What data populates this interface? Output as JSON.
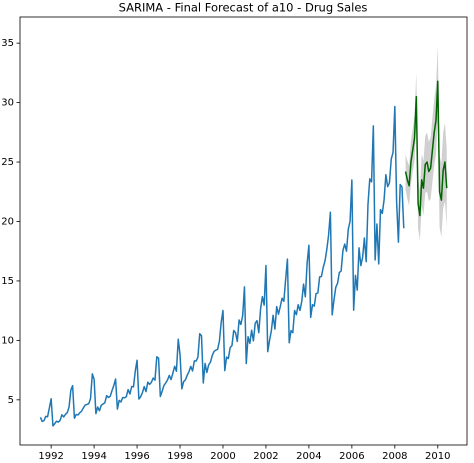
{
  "chart_data": {
    "type": "line",
    "title": "SARIMA - Final Forecast of a10 - Drug Sales",
    "xlim": [
      1990.55,
      2011.36
    ],
    "ylim": [
      1.2,
      37.2
    ],
    "xticks": [
      1992,
      1994,
      1996,
      1998,
      2000,
      2002,
      2004,
      2006,
      2008,
      2010
    ],
    "yticks": [
      5,
      10,
      15,
      20,
      25,
      30,
      35
    ],
    "series": [
      {
        "color": "#1f77b4",
        "x": [
          1991.5,
          1991.583,
          1991.667,
          1991.75,
          1991.833,
          1991.917,
          1992,
          1992.083,
          1992.167,
          1992.25,
          1992.333,
          1992.417,
          1992.5,
          1992.583,
          1992.667,
          1992.75,
          1992.833,
          1992.917,
          1993,
          1993.083,
          1993.167,
          1993.25,
          1993.333,
          1993.417,
          1993.5,
          1993.583,
          1993.667,
          1993.75,
          1993.833,
          1993.917,
          1994,
          1994.083,
          1994.167,
          1994.25,
          1994.333,
          1994.417,
          1994.5,
          1994.583,
          1994.667,
          1994.75,
          1994.833,
          1994.917,
          1995,
          1995.083,
          1995.167,
          1995.25,
          1995.333,
          1995.417,
          1995.5,
          1995.583,
          1995.667,
          1995.75,
          1995.833,
          1995.917,
          1996,
          1996.083,
          1996.167,
          1996.25,
          1996.333,
          1996.417,
          1996.5,
          1996.583,
          1996.667,
          1996.75,
          1996.833,
          1996.917,
          1997,
          1997.083,
          1997.167,
          1997.25,
          1997.333,
          1997.417,
          1997.5,
          1997.583,
          1997.667,
          1997.75,
          1997.833,
          1997.917,
          1998,
          1998.083,
          1998.167,
          1998.25,
          1998.333,
          1998.417,
          1998.5,
          1998.583,
          1998.667,
          1998.75,
          1998.833,
          1998.917,
          1999,
          1999.083,
          1999.167,
          1999.25,
          1999.333,
          1999.417,
          1999.5,
          1999.583,
          1999.667,
          1999.75,
          1999.833,
          1999.917,
          2000,
          2000.083,
          2000.167,
          2000.25,
          2000.333,
          2000.417,
          2000.5,
          2000.583,
          2000.667,
          2000.75,
          2000.833,
          2000.917,
          2001,
          2001.083,
          2001.167,
          2001.25,
          2001.333,
          2001.417,
          2001.5,
          2001.583,
          2001.667,
          2001.75,
          2001.833,
          2001.917,
          2002,
          2002.083,
          2002.167,
          2002.25,
          2002.333,
          2002.417,
          2002.5,
          2002.583,
          2002.667,
          2002.75,
          2002.833,
          2002.917,
          2003,
          2003.083,
          2003.167,
          2003.25,
          2003.333,
          2003.417,
          2003.5,
          2003.583,
          2003.667,
          2003.75,
          2003.833,
          2003.917,
          2004,
          2004.083,
          2004.167,
          2004.25,
          2004.333,
          2004.417,
          2004.5,
          2004.583,
          2004.667,
          2004.75,
          2004.833,
          2004.917,
          2005,
          2005.083,
          2005.167,
          2005.25,
          2005.333,
          2005.417,
          2005.5,
          2005.583,
          2005.667,
          2005.75,
          2005.833,
          2005.917,
          2006,
          2006.083,
          2006.167,
          2006.25,
          2006.333,
          2006.417,
          2006.5,
          2006.583,
          2006.667,
          2006.75,
          2006.833,
          2006.917,
          2007,
          2007.083,
          2007.167,
          2007.25,
          2007.333,
          2007.417,
          2007.5,
          2007.583,
          2007.667,
          2007.75,
          2007.833,
          2007.917,
          2008,
          2008.083,
          2008.167,
          2008.25,
          2008.333,
          2008.417
        ],
        "values": [
          3.53,
          3.18,
          3.25,
          3.61,
          3.57,
          4.31,
          5.09,
          2.81,
          2.99,
          3.2,
          3.13,
          3.27,
          3.74,
          3.56,
          3.78,
          3.92,
          4.39,
          5.81,
          6.19,
          3.45,
          3.77,
          3.73,
          3.91,
          4.05,
          4.32,
          4.56,
          4.61,
          4.67,
          5.09,
          7.18,
          6.73,
          3.84,
          4.39,
          4.08,
          4.54,
          4.65,
          4.75,
          5.35,
          5.2,
          5.3,
          5.77,
          6.2,
          6.75,
          4.22,
          4.95,
          4.82,
          5.19,
          5.17,
          5.26,
          5.86,
          5.49,
          6.12,
          6.09,
          7.42,
          8.33,
          5.07,
          5.26,
          5.6,
          6.11,
          5.69,
          6.49,
          6.3,
          6.47,
          6.83,
          6.65,
          8.61,
          8.52,
          5.28,
          5.71,
          6.21,
          6.41,
          6.67,
          7.05,
          6.7,
          7.25,
          7.82,
          7.4,
          10.1,
          8.8,
          5.92,
          6.53,
          6.68,
          7.06,
          7.38,
          7.81,
          7.43,
          8.28,
          8.26,
          8.6,
          10.56,
          10.39,
          6.42,
          8.06,
          7.3,
          7.94,
          8.17,
          8.72,
          9.07,
          9.18,
          9.25,
          9.93,
          11.53,
          12.51,
          7.46,
          8.59,
          8.47,
          9.39,
          9.56,
          10.83,
          10.64,
          9.91,
          11.71,
          11.34,
          12.08,
          14.5,
          8.05,
          10.31,
          9.75,
          10.85,
          9.96,
          11.44,
          11.66,
          10.65,
          12.65,
          13.67,
          12.97,
          16.3,
          9.05,
          10,
          10.79,
          12.11,
          10.95,
          12.84,
          12.2,
          12.85,
          13.54,
          13.29,
          15.13,
          16.83,
          9.8,
          10.82,
          10.65,
          12.51,
          12.16,
          13,
          12.52,
          13.27,
          14.73,
          13.67,
          16.5,
          18,
          11.94,
          13,
          12.88,
          13.94,
          13.99,
          15.34,
          15.37,
          16.14,
          16.69,
          17.64,
          18.87,
          20.78,
          12.15,
          13.4,
          14.46,
          14.8,
          15.71,
          15.83,
          17.55,
          18.1,
          17.5,
          19.35,
          20.03,
          23.49,
          12.54,
          15.47,
          14.23,
          17.78,
          16.29,
          16.98,
          18.61,
          16.62,
          21.43,
          23.58,
          23.33,
          28.04,
          16.76,
          19.79,
          16.43,
          21,
          20.68,
          21.83,
          23.93,
          22.93,
          23.26,
          25.25,
          25.81,
          29.67,
          21.65,
          18.26,
          23.11,
          22.91,
          19.43
        ]
      },
      {
        "color": "#006400",
        "band_color": "#c8c8c8",
        "x": [
          2008.5,
          2008.583,
          2008.667,
          2008.75,
          2008.833,
          2008.917,
          2009,
          2009.083,
          2009.167,
          2009.25,
          2009.333,
          2009.417,
          2009.5,
          2009.583,
          2009.667,
          2009.75,
          2009.833,
          2009.917,
          2010,
          2010.083,
          2010.167,
          2010.25,
          2010.333,
          2010.417
        ],
        "values": [
          24.2,
          23.5,
          23.0,
          25.0,
          26.0,
          27.0,
          30.5,
          21.5,
          20.5,
          23.5,
          22.8,
          24.8,
          25.0,
          24.2,
          24.5,
          26.0,
          27.5,
          28.5,
          31.8,
          22.5,
          21.8,
          24.3,
          25.0,
          22.8
        ],
        "lower": [
          22.7,
          21.9,
          21.3,
          23.2,
          24.2,
          25.1,
          28.5,
          19.4,
          18.4,
          21.3,
          20.5,
          22.4,
          22.5,
          21.7,
          21.9,
          23.3,
          24.7,
          25.6,
          28.8,
          19.5,
          18.7,
          21.1,
          21.7,
          19.5
        ],
        "upper": [
          25.7,
          25.1,
          24.7,
          26.8,
          27.8,
          28.9,
          32.5,
          23.6,
          22.6,
          25.7,
          25.1,
          27.2,
          27.5,
          26.7,
          27.1,
          28.7,
          30.3,
          31.4,
          34.8,
          25.5,
          24.9,
          27.5,
          28.3,
          26.1
        ]
      }
    ]
  }
}
